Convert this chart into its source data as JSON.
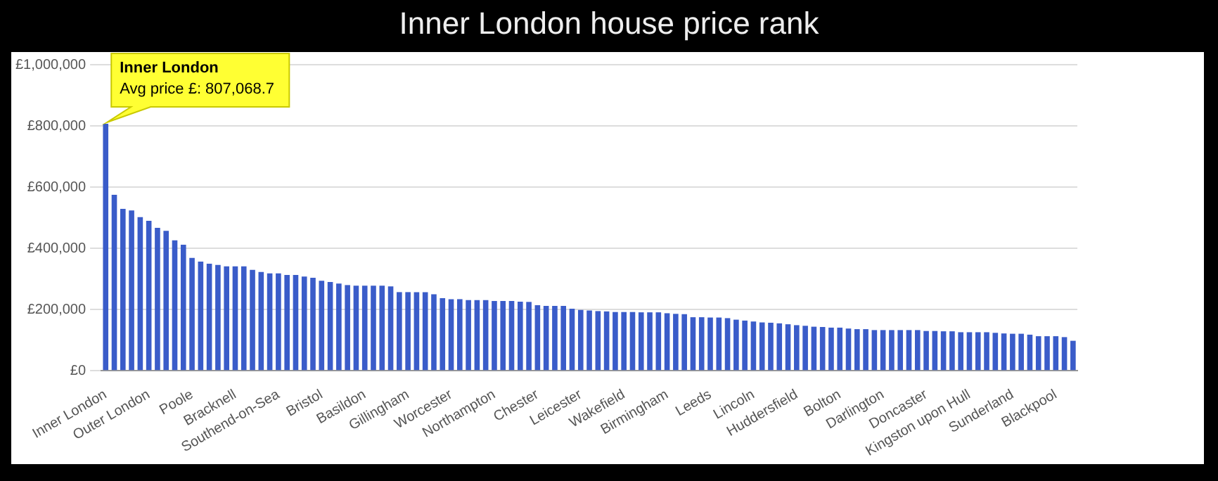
{
  "chart_data": {
    "type": "bar",
    "title": "Inner London house price rank",
    "categories": [
      "Inner London",
      null,
      null,
      null,
      null,
      "Outer London",
      null,
      null,
      null,
      null,
      "Poole",
      null,
      null,
      null,
      null,
      "Bracknell",
      null,
      null,
      null,
      null,
      "Southend-on-Sea",
      null,
      null,
      null,
      null,
      "Bristol",
      null,
      null,
      null,
      null,
      "Basildon",
      null,
      null,
      null,
      null,
      "Gillingham",
      null,
      null,
      null,
      null,
      "Worcester",
      null,
      null,
      null,
      null,
      "Northampton",
      null,
      null,
      null,
      null,
      "Chester",
      null,
      null,
      null,
      null,
      "Leicester",
      null,
      null,
      null,
      null,
      "Wakefield",
      null,
      null,
      null,
      null,
      "Birmingham",
      null,
      null,
      null,
      null,
      "Leeds",
      null,
      null,
      null,
      null,
      "Lincoln",
      null,
      null,
      null,
      null,
      "Huddersfield",
      null,
      null,
      null,
      null,
      "Bolton",
      null,
      null,
      null,
      null,
      "Darlington",
      null,
      null,
      null,
      null,
      "Doncaster",
      null,
      null,
      null,
      null,
      "Kingston upon Hull",
      null,
      null,
      null,
      null,
      "Sunderland",
      null,
      null,
      null,
      null,
      "Blackpool",
      null,
      null
    ],
    "values": [
      807068.7,
      575000,
      529000,
      524000,
      502000,
      490000,
      467000,
      457000,
      426000,
      412000,
      369000,
      357000,
      350000,
      346000,
      341000,
      341000,
      341000,
      330000,
      323000,
      318000,
      318000,
      313000,
      313000,
      308000,
      304000,
      294000,
      290000,
      285000,
      280000,
      278000,
      278000,
      278000,
      278000,
      276000,
      257000,
      257000,
      257000,
      257000,
      250000,
      237000,
      234000,
      234000,
      231000,
      231000,
      231000,
      228000,
      228000,
      228000,
      226000,
      225000,
      214000,
      212000,
      212000,
      212000,
      203000,
      199000,
      197000,
      195000,
      194000,
      192000,
      192000,
      192000,
      191000,
      191000,
      191000,
      188000,
      186000,
      185000,
      175000,
      175000,
      174000,
      174000,
      172000,
      167000,
      164000,
      161000,
      158000,
      157000,
      155000,
      152000,
      149000,
      147000,
      144000,
      143000,
      141000,
      141000,
      138000,
      136000,
      136000,
      133000,
      133000,
      133000,
      133000,
      133000,
      133000,
      130000,
      130000,
      129000,
      129000,
      126000,
      126000,
      126000,
      126000,
      124000,
      122000,
      121000,
      121000,
      118000,
      113000,
      113000,
      113000,
      110000,
      98000
    ],
    "color": "#3a5cc9",
    "ylim": [
      0,
      1000000
    ],
    "yticks": [
      {
        "value": 0,
        "label": "£0"
      },
      {
        "value": 200000,
        "label": "£200,000"
      },
      {
        "value": 400000,
        "label": "£400,000"
      },
      {
        "value": 600000,
        "label": "£600,000"
      },
      {
        "value": 800000,
        "label": "£800,000"
      },
      {
        "value": 1000000,
        "label": "£1,000,000"
      }
    ],
    "grid": "y",
    "annotations": [
      {
        "text": "Inner London\nAvg price £: 807,068.7",
        "x": "Inner London",
        "y": 807068.7
      }
    ]
  }
}
